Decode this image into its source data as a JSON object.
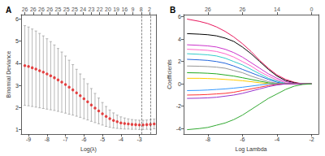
{
  "chart_data": [
    {
      "title": "A",
      "type": "scatter",
      "marker": "circle",
      "color": "#e41a1c",
      "grid": false,
      "xlabel": "Log(λ)",
      "ylabel": "Binomial Deviance",
      "x": [
        -9.2,
        -9.0,
        -8.8,
        -8.6,
        -8.4,
        -8.2,
        -8.0,
        -7.8,
        -7.6,
        -7.4,
        -7.2,
        -7.0,
        -6.8,
        -6.6,
        -6.4,
        -6.2,
        -6.0,
        -5.8,
        -5.6,
        -5.4,
        -5.2,
        -5.0,
        -4.8,
        -4.6,
        -4.4,
        -4.2,
        -4.0,
        -3.8,
        -3.6,
        -3.4,
        -3.2,
        -3.0,
        -2.8,
        -2.6,
        -2.4,
        -2.2
      ],
      "values": [
        3.9,
        3.86,
        3.8,
        3.74,
        3.67,
        3.6,
        3.52,
        3.44,
        3.35,
        3.25,
        3.15,
        3.04,
        2.92,
        2.8,
        2.67,
        2.54,
        2.4,
        2.26,
        2.12,
        1.98,
        1.85,
        1.72,
        1.6,
        1.5,
        1.42,
        1.36,
        1.31,
        1.28,
        1.26,
        1.24,
        1.23,
        1.22,
        1.22,
        1.23,
        1.24,
        1.26
      ],
      "errors": [
        1.8,
        1.78,
        1.75,
        1.72,
        1.68,
        1.64,
        1.59,
        1.54,
        1.48,
        1.42,
        1.36,
        1.29,
        1.22,
        1.14,
        1.06,
        0.98,
        0.9,
        0.82,
        0.74,
        0.66,
        0.58,
        0.51,
        0.45,
        0.39,
        0.34,
        0.3,
        0.27,
        0.25,
        0.23,
        0.22,
        0.21,
        0.21,
        0.21,
        0.21,
        0.22,
        0.22
      ],
      "xlim": [
        -9.4,
        -2.1
      ],
      "xticks": [
        -9,
        -8,
        -7,
        -6,
        -5,
        -4,
        -3
      ],
      "ylim": [
        0.8,
        6.2
      ],
      "yticks": [
        1,
        2,
        3,
        4,
        5,
        6
      ],
      "top_ticks": [
        {
          "value": -9.2,
          "label": "26"
        },
        {
          "value": -8.75,
          "label": "26"
        },
        {
          "value": -8.3,
          "label": "26"
        },
        {
          "value": -7.85,
          "label": "26"
        },
        {
          "value": -7.4,
          "label": "25"
        },
        {
          "value": -6.95,
          "label": "25"
        },
        {
          "value": -6.5,
          "label": "25"
        },
        {
          "value": -6.05,
          "label": "24"
        },
        {
          "value": -5.6,
          "label": "23"
        },
        {
          "value": -5.15,
          "label": "22"
        },
        {
          "value": -4.7,
          "label": "20"
        },
        {
          "value": -4.25,
          "label": "19"
        },
        {
          "value": -3.8,
          "label": "16"
        },
        {
          "value": -3.35,
          "label": "9"
        },
        {
          "value": -2.9,
          "label": "8"
        },
        {
          "value": -2.45,
          "label": "2"
        }
      ],
      "vlines": [
        -2.9,
        -2.4
      ]
    },
    {
      "title": "B",
      "type": "line",
      "grid": false,
      "xlabel": "Log Lambda",
      "ylabel": "Coefficients",
      "x": [
        -9.2,
        -8.5,
        -8,
        -7.5,
        -7,
        -6.5,
        -6,
        -5.5,
        -5,
        -4.5,
        -4,
        -3.5,
        -3,
        -2.5,
        -2
      ],
      "series": [
        {
          "color": "#e8175d",
          "values": [
            5.8,
            5.6,
            5.4,
            5.1,
            4.7,
            4.2,
            3.6,
            2.9,
            2.1,
            1.4,
            0.8,
            0.4,
            0.15,
            0,
            0
          ]
        },
        {
          "color": "#000000",
          "values": [
            4.5,
            4.45,
            4.4,
            4.3,
            4.1,
            3.8,
            3.3,
            2.7,
            2.0,
            1.3,
            0.7,
            0.3,
            0.1,
            0,
            0
          ]
        },
        {
          "color": "#cc33cc",
          "values": [
            3.5,
            3.45,
            3.4,
            3.3,
            3.1,
            2.8,
            2.4,
            1.9,
            1.4,
            0.9,
            0.5,
            0.2,
            0.05,
            0,
            0
          ]
        },
        {
          "color": "#ff66cc",
          "values": [
            3.1,
            3.05,
            3.0,
            2.9,
            2.7,
            2.4,
            2.0,
            1.6,
            1.1,
            0.7,
            0.35,
            0.1,
            0,
            0,
            0
          ]
        },
        {
          "color": "#33cccc",
          "values": [
            2.7,
            2.65,
            2.6,
            2.5,
            2.3,
            2.0,
            1.7,
            1.3,
            0.9,
            0.5,
            0.25,
            0.05,
            0,
            0,
            0
          ]
        },
        {
          "color": "#2266dd",
          "values": [
            2.2,
            2.15,
            2.1,
            2.0,
            1.85,
            1.6,
            1.3,
            1.0,
            0.7,
            0.4,
            0.15,
            0,
            0,
            0,
            0
          ]
        },
        {
          "color": "#999999",
          "values": [
            1.6,
            1.58,
            1.55,
            1.5,
            1.4,
            1.2,
            1.0,
            0.7,
            0.45,
            0.2,
            0.05,
            0,
            0,
            0,
            0
          ]
        },
        {
          "color": "#22aa22",
          "values": [
            1.0,
            0.98,
            0.95,
            0.9,
            0.8,
            0.7,
            0.55,
            0.4,
            0.25,
            0.1,
            0,
            0,
            0,
            0,
            0
          ]
        },
        {
          "color": "#ffcc00",
          "values": [
            0.5,
            0.5,
            0.48,
            0.45,
            0.4,
            0.35,
            0.28,
            0.2,
            0.1,
            0.03,
            0,
            0,
            0,
            0,
            0
          ]
        },
        {
          "color": "#3399ff",
          "values": [
            -0.6,
            -0.58,
            -0.55,
            -0.5,
            -0.45,
            -0.38,
            -0.3,
            -0.2,
            -0.1,
            0,
            0,
            0,
            0,
            0,
            0
          ]
        },
        {
          "color": "#ff3333",
          "values": [
            -1.0,
            -0.98,
            -0.95,
            -0.9,
            -0.85,
            -0.75,
            -0.6,
            -0.45,
            -0.3,
            -0.15,
            -0.05,
            0,
            0,
            0,
            0
          ]
        },
        {
          "color": "#9933cc",
          "values": [
            -1.3,
            -1.28,
            -1.25,
            -1.2,
            -1.1,
            -1.0,
            -0.85,
            -0.65,
            -0.45,
            -0.25,
            -0.1,
            0,
            0,
            0,
            0
          ]
        },
        {
          "color": "#33aa33",
          "values": [
            -4.1,
            -4.0,
            -3.9,
            -3.7,
            -3.5,
            -3.2,
            -2.8,
            -2.3,
            -1.8,
            -1.3,
            -0.9,
            -0.5,
            -0.2,
            -0.05,
            0
          ]
        }
      ],
      "xlim": [
        -9.4,
        -1.6
      ],
      "xticks": [
        -8,
        -6,
        -4,
        -2
      ],
      "ylim": [
        -4.5,
        6.2
      ],
      "yticks": [
        -4,
        -2,
        0,
        2,
        4,
        6
      ],
      "top_ticks": [
        {
          "value": -8,
          "label": "26"
        },
        {
          "value": -6,
          "label": "26"
        },
        {
          "value": -4,
          "label": "14"
        },
        {
          "value": -2,
          "label": "0"
        }
      ]
    }
  ]
}
